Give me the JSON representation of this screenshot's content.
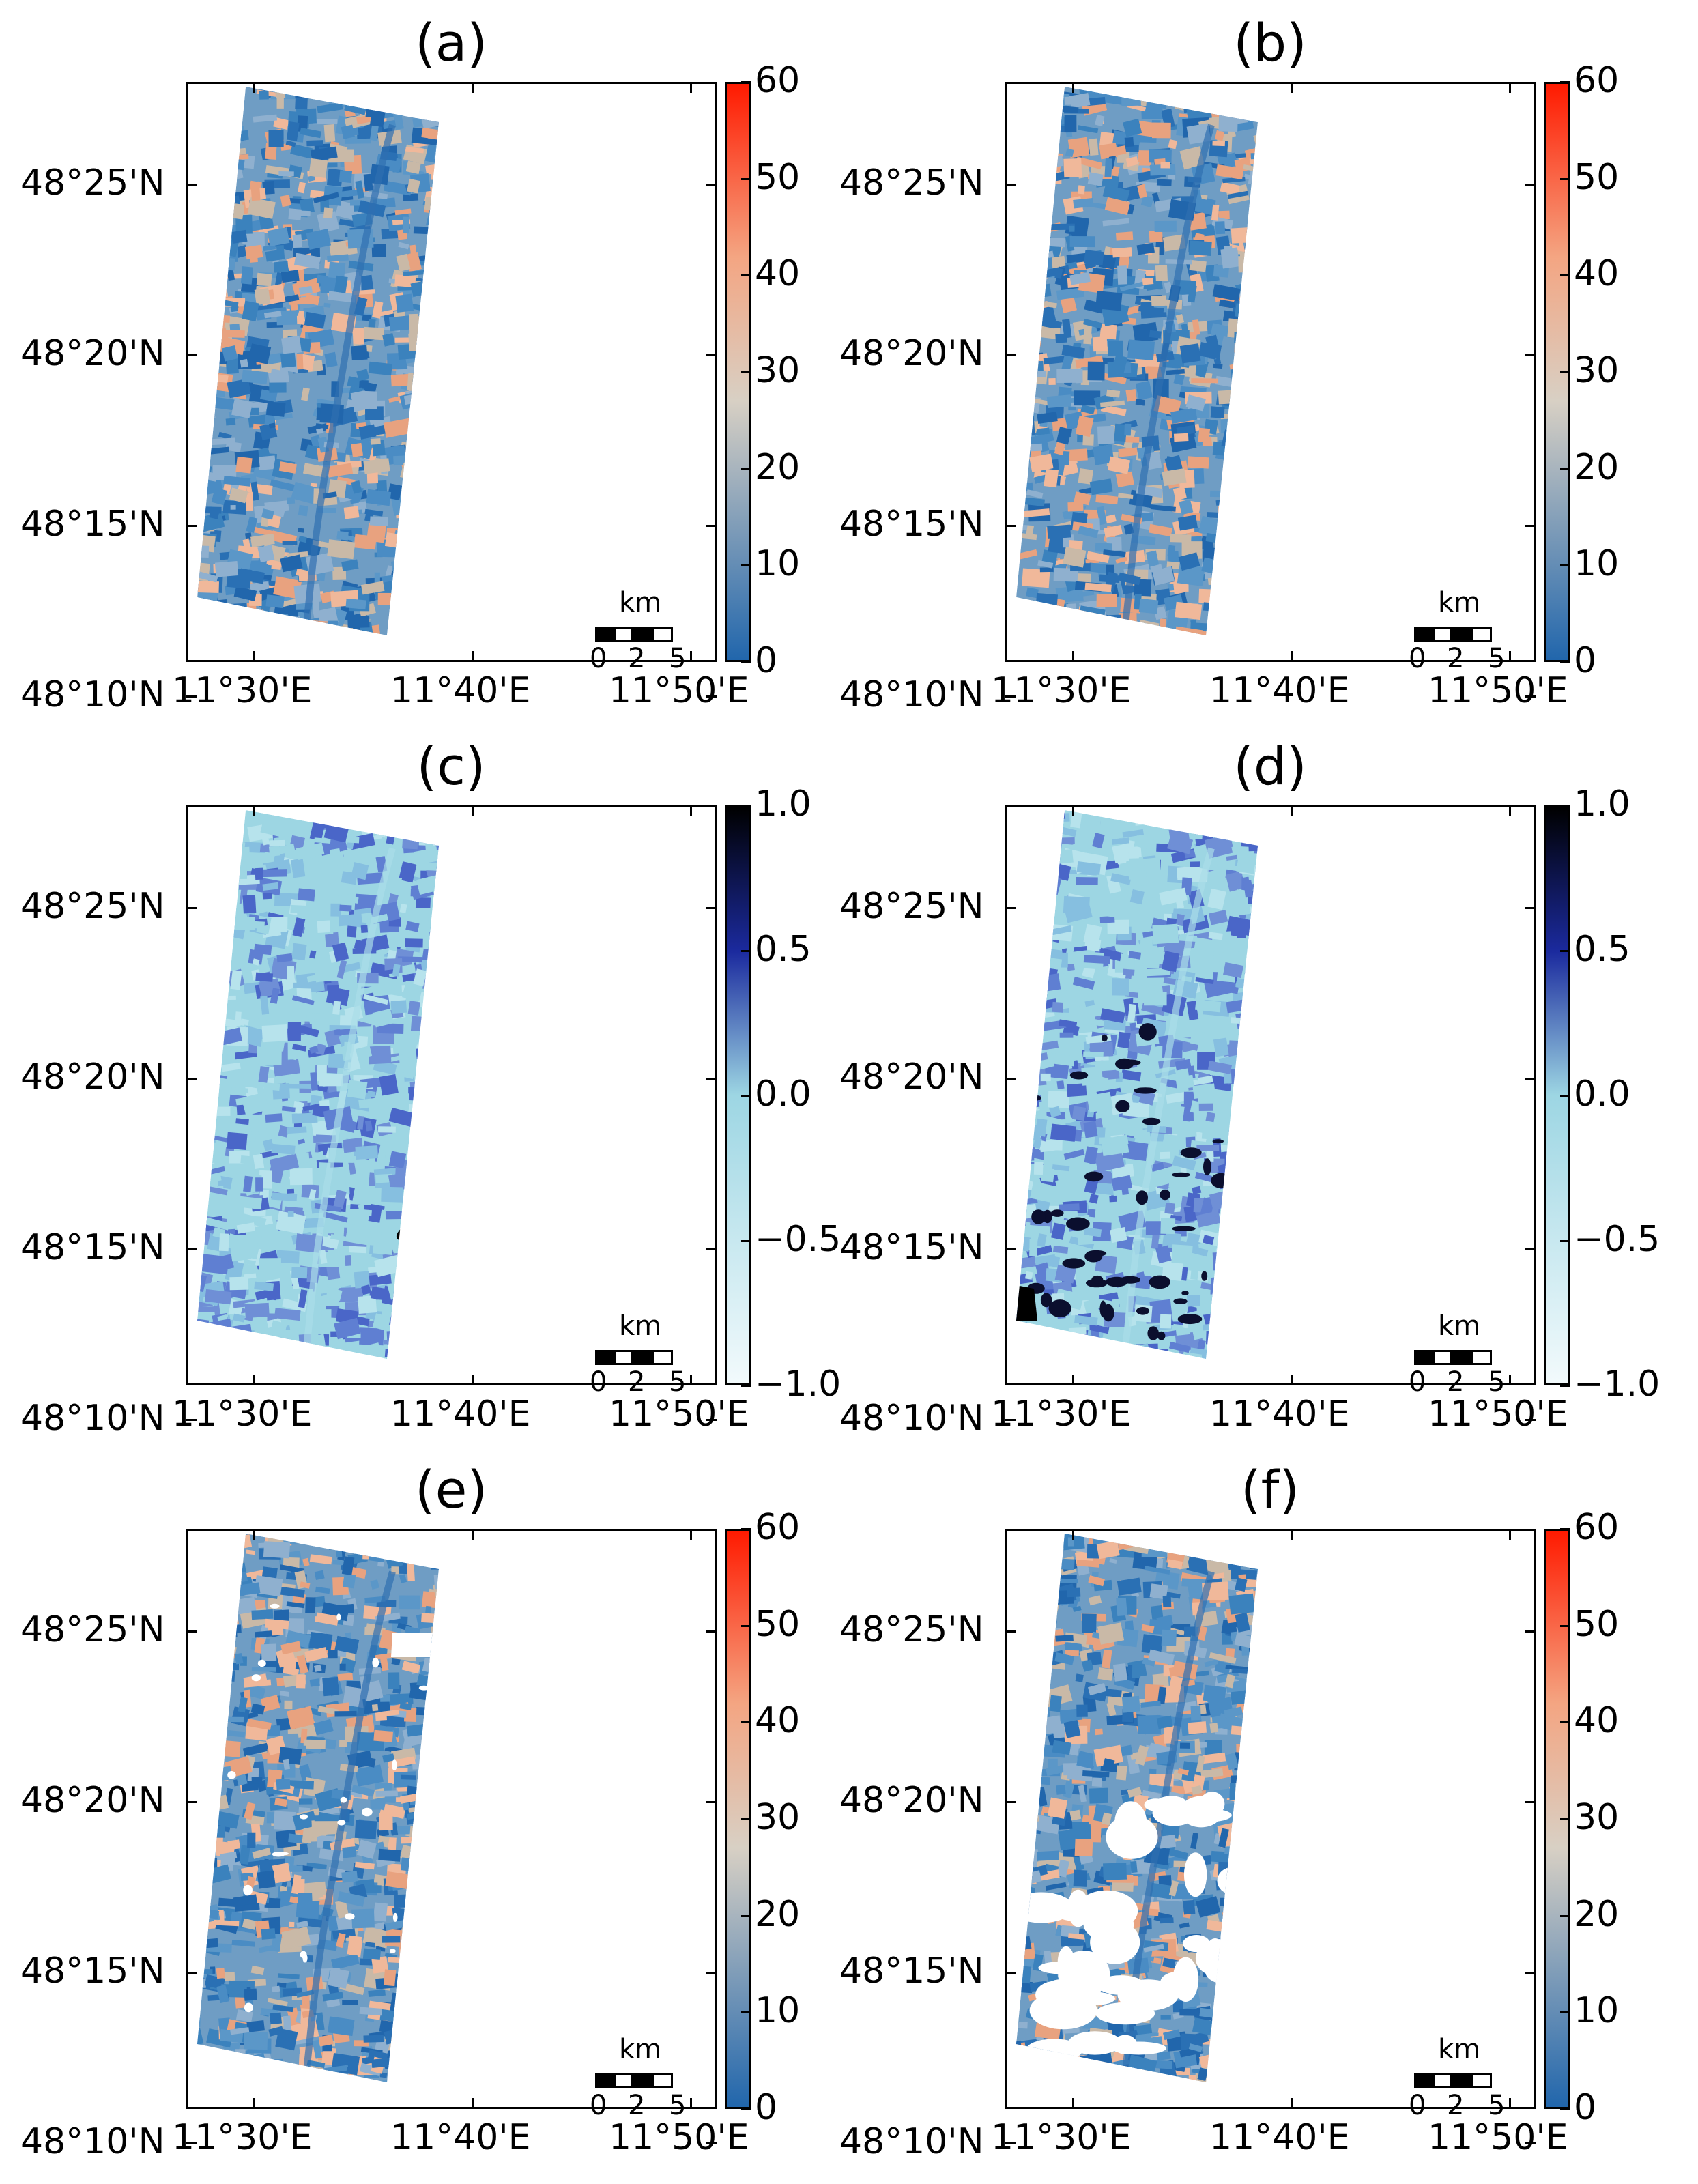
{
  "colors": {
    "diverging_low": "#2166ac",
    "diverging_mid": "#d8d0c4",
    "diverging_high": "#ff1a00",
    "blues_low": "#f2fafc",
    "blues_mid": "#9dd6e3",
    "blues_high": "#000000"
  },
  "panels": [
    {
      "id": "a",
      "title": "(a)",
      "colormap": "intensity",
      "lat_labels": [
        "48°25'N",
        "48°20'N",
        "48°15'N",
        "48°10'N"
      ],
      "lon_labels": [
        "11°30'E",
        "11°40'E",
        "11°50'E"
      ],
      "colorbar": [
        "60",
        "50",
        "40",
        "30",
        "20",
        "10",
        "0"
      ],
      "scalebar": {
        "unit": "km",
        "ticks": [
          "0",
          "2",
          "5"
        ]
      }
    },
    {
      "id": "b",
      "title": "(b)",
      "colormap": "intensity",
      "lat_labels": [
        "48°25'N",
        "48°20'N",
        "48°15'N",
        "48°10'N"
      ],
      "lon_labels": [
        "11°30'E",
        "11°40'E",
        "11°50'E"
      ],
      "colorbar": [
        "60",
        "50",
        "40",
        "30",
        "20",
        "10",
        "0"
      ],
      "scalebar": {
        "unit": "km",
        "ticks": [
          "0",
          "2",
          "5"
        ]
      }
    },
    {
      "id": "c",
      "title": "(c)",
      "colormap": "correlation",
      "lat_labels": [
        "48°25'N",
        "48°20'N",
        "48°15'N",
        "48°10'N"
      ],
      "lon_labels": [
        "11°30'E",
        "11°40'E",
        "11°50'E"
      ],
      "colorbar": [
        "1.0",
        "0.5",
        "0.0",
        "−0.5",
        "−1.0"
      ],
      "scalebar": {
        "unit": "km",
        "ticks": [
          "0",
          "2",
          "5"
        ]
      }
    },
    {
      "id": "d",
      "title": "(d)",
      "colormap": "correlation",
      "lat_labels": [
        "48°25'N",
        "48°20'N",
        "48°15'N",
        "48°10'N"
      ],
      "lon_labels": [
        "11°30'E",
        "11°40'E",
        "11°50'E"
      ],
      "colorbar": [
        "1.0",
        "0.5",
        "0.0",
        "−0.5",
        "−1.0"
      ],
      "scalebar": {
        "unit": "km",
        "ticks": [
          "0",
          "2",
          "5"
        ]
      }
    },
    {
      "id": "e",
      "title": "(e)",
      "colormap": "intensity",
      "lat_labels": [
        "48°25'N",
        "48°20'N",
        "48°15'N",
        "48°10'N"
      ],
      "lon_labels": [
        "11°30'E",
        "11°40'E",
        "11°50'E"
      ],
      "colorbar": [
        "60",
        "50",
        "40",
        "30",
        "20",
        "10",
        "0"
      ],
      "scalebar": {
        "unit": "km",
        "ticks": [
          "0",
          "2",
          "5"
        ]
      }
    },
    {
      "id": "f",
      "title": "(f)",
      "colormap": "intensity",
      "lat_labels": [
        "48°25'N",
        "48°20'N",
        "48°15'N",
        "48°10'N"
      ],
      "lon_labels": [
        "11°30'E",
        "11°40'E",
        "11°50'E"
      ],
      "colorbar": [
        "60",
        "50",
        "40",
        "30",
        "20",
        "10",
        "0"
      ],
      "scalebar": {
        "unit": "km",
        "ticks": [
          "0",
          "2",
          "5"
        ]
      }
    }
  ]
}
